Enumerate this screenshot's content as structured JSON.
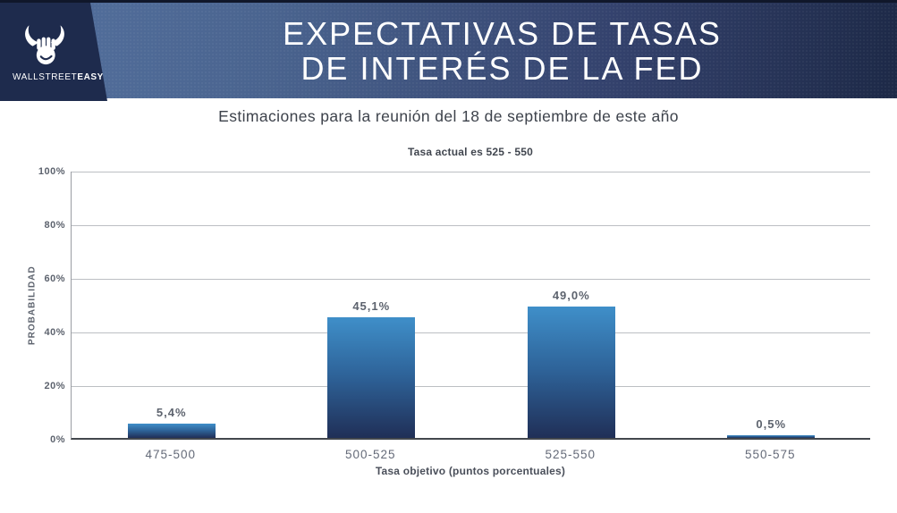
{
  "header": {
    "brand_light": "WALLSTREET",
    "brand_bold": "EASY",
    "title_line1": "EXPECTATIVAS DE TASAS",
    "title_line2": "DE INTERÉS DE LA FED"
  },
  "subtitle": "Estimaciones para la reunión del 18 de septiembre de este año",
  "chart_data": {
    "type": "bar",
    "title": "Tasa actual es 525 - 550",
    "categories": [
      "475-500",
      "500-525",
      "525-550",
      "550-575"
    ],
    "values": [
      5.4,
      45.1,
      49.0,
      0.5
    ],
    "value_labels": [
      "5,4%",
      "45,1%",
      "49,0%",
      "0,5%"
    ],
    "xlabel": "Tasa objetivo (puntos porcentuales)",
    "ylabel": "PROBABILIDAD",
    "ylim": [
      0,
      100
    ],
    "ytick_labels": [
      "100%",
      "80%",
      "60%",
      "40%",
      "20%",
      "0%"
    ],
    "grid": true,
    "legend": "none",
    "colors": {
      "bar_gradient_top": "#3f8fc9",
      "bar_gradient_mid": "#2e6399",
      "bar_gradient_bottom": "#202f57",
      "header_left": "#54719f",
      "header_right": "#1d2947",
      "logo_panel": "#1e2b4d",
      "gridline": "#bcbfc3",
      "axis": "#43474d",
      "label_gray": "#5d636e"
    }
  }
}
